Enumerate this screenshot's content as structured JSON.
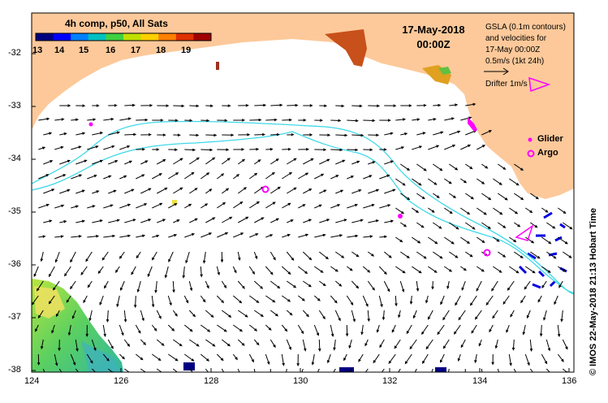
{
  "colorbar": {
    "title": "4h comp, p50, All Sats",
    "ticks": [
      "13",
      "14",
      "15",
      "16",
      "17",
      "18",
      "19"
    ],
    "colors": [
      "#000080",
      "#0000ff",
      "#0080ff",
      "#00c0c0",
      "#40d040",
      "#c0e000",
      "#ffd000",
      "#ff8000",
      "#e03000",
      "#a00000"
    ]
  },
  "date": {
    "day": "17-May-2018",
    "time": "00:00Z"
  },
  "info": {
    "line1": "GSLA (0.1m contours)",
    "line2": "and velocities for",
    "line3": "17-May 00:00Z",
    "scale": "0.5m/s (1kt 24h)",
    "drifter": "Drifter 1m/s"
  },
  "legend": {
    "glider": "Glider",
    "argo": "Argo"
  },
  "credit": "© IMOS 22-May-2018 21:13 Hobart Time",
  "axes": {
    "lon_ticks": [
      "124",
      "126",
      "128",
      "130",
      "132",
      "134",
      "136"
    ],
    "lat_ticks": [
      "-32",
      "-33",
      "-34",
      "-35",
      "-36",
      "-37",
      "-38"
    ]
  },
  "colors": {
    "land": "#fdc99a",
    "contour": "#40d8e8",
    "marker": "#ff00ff",
    "arrow": "#000000"
  }
}
